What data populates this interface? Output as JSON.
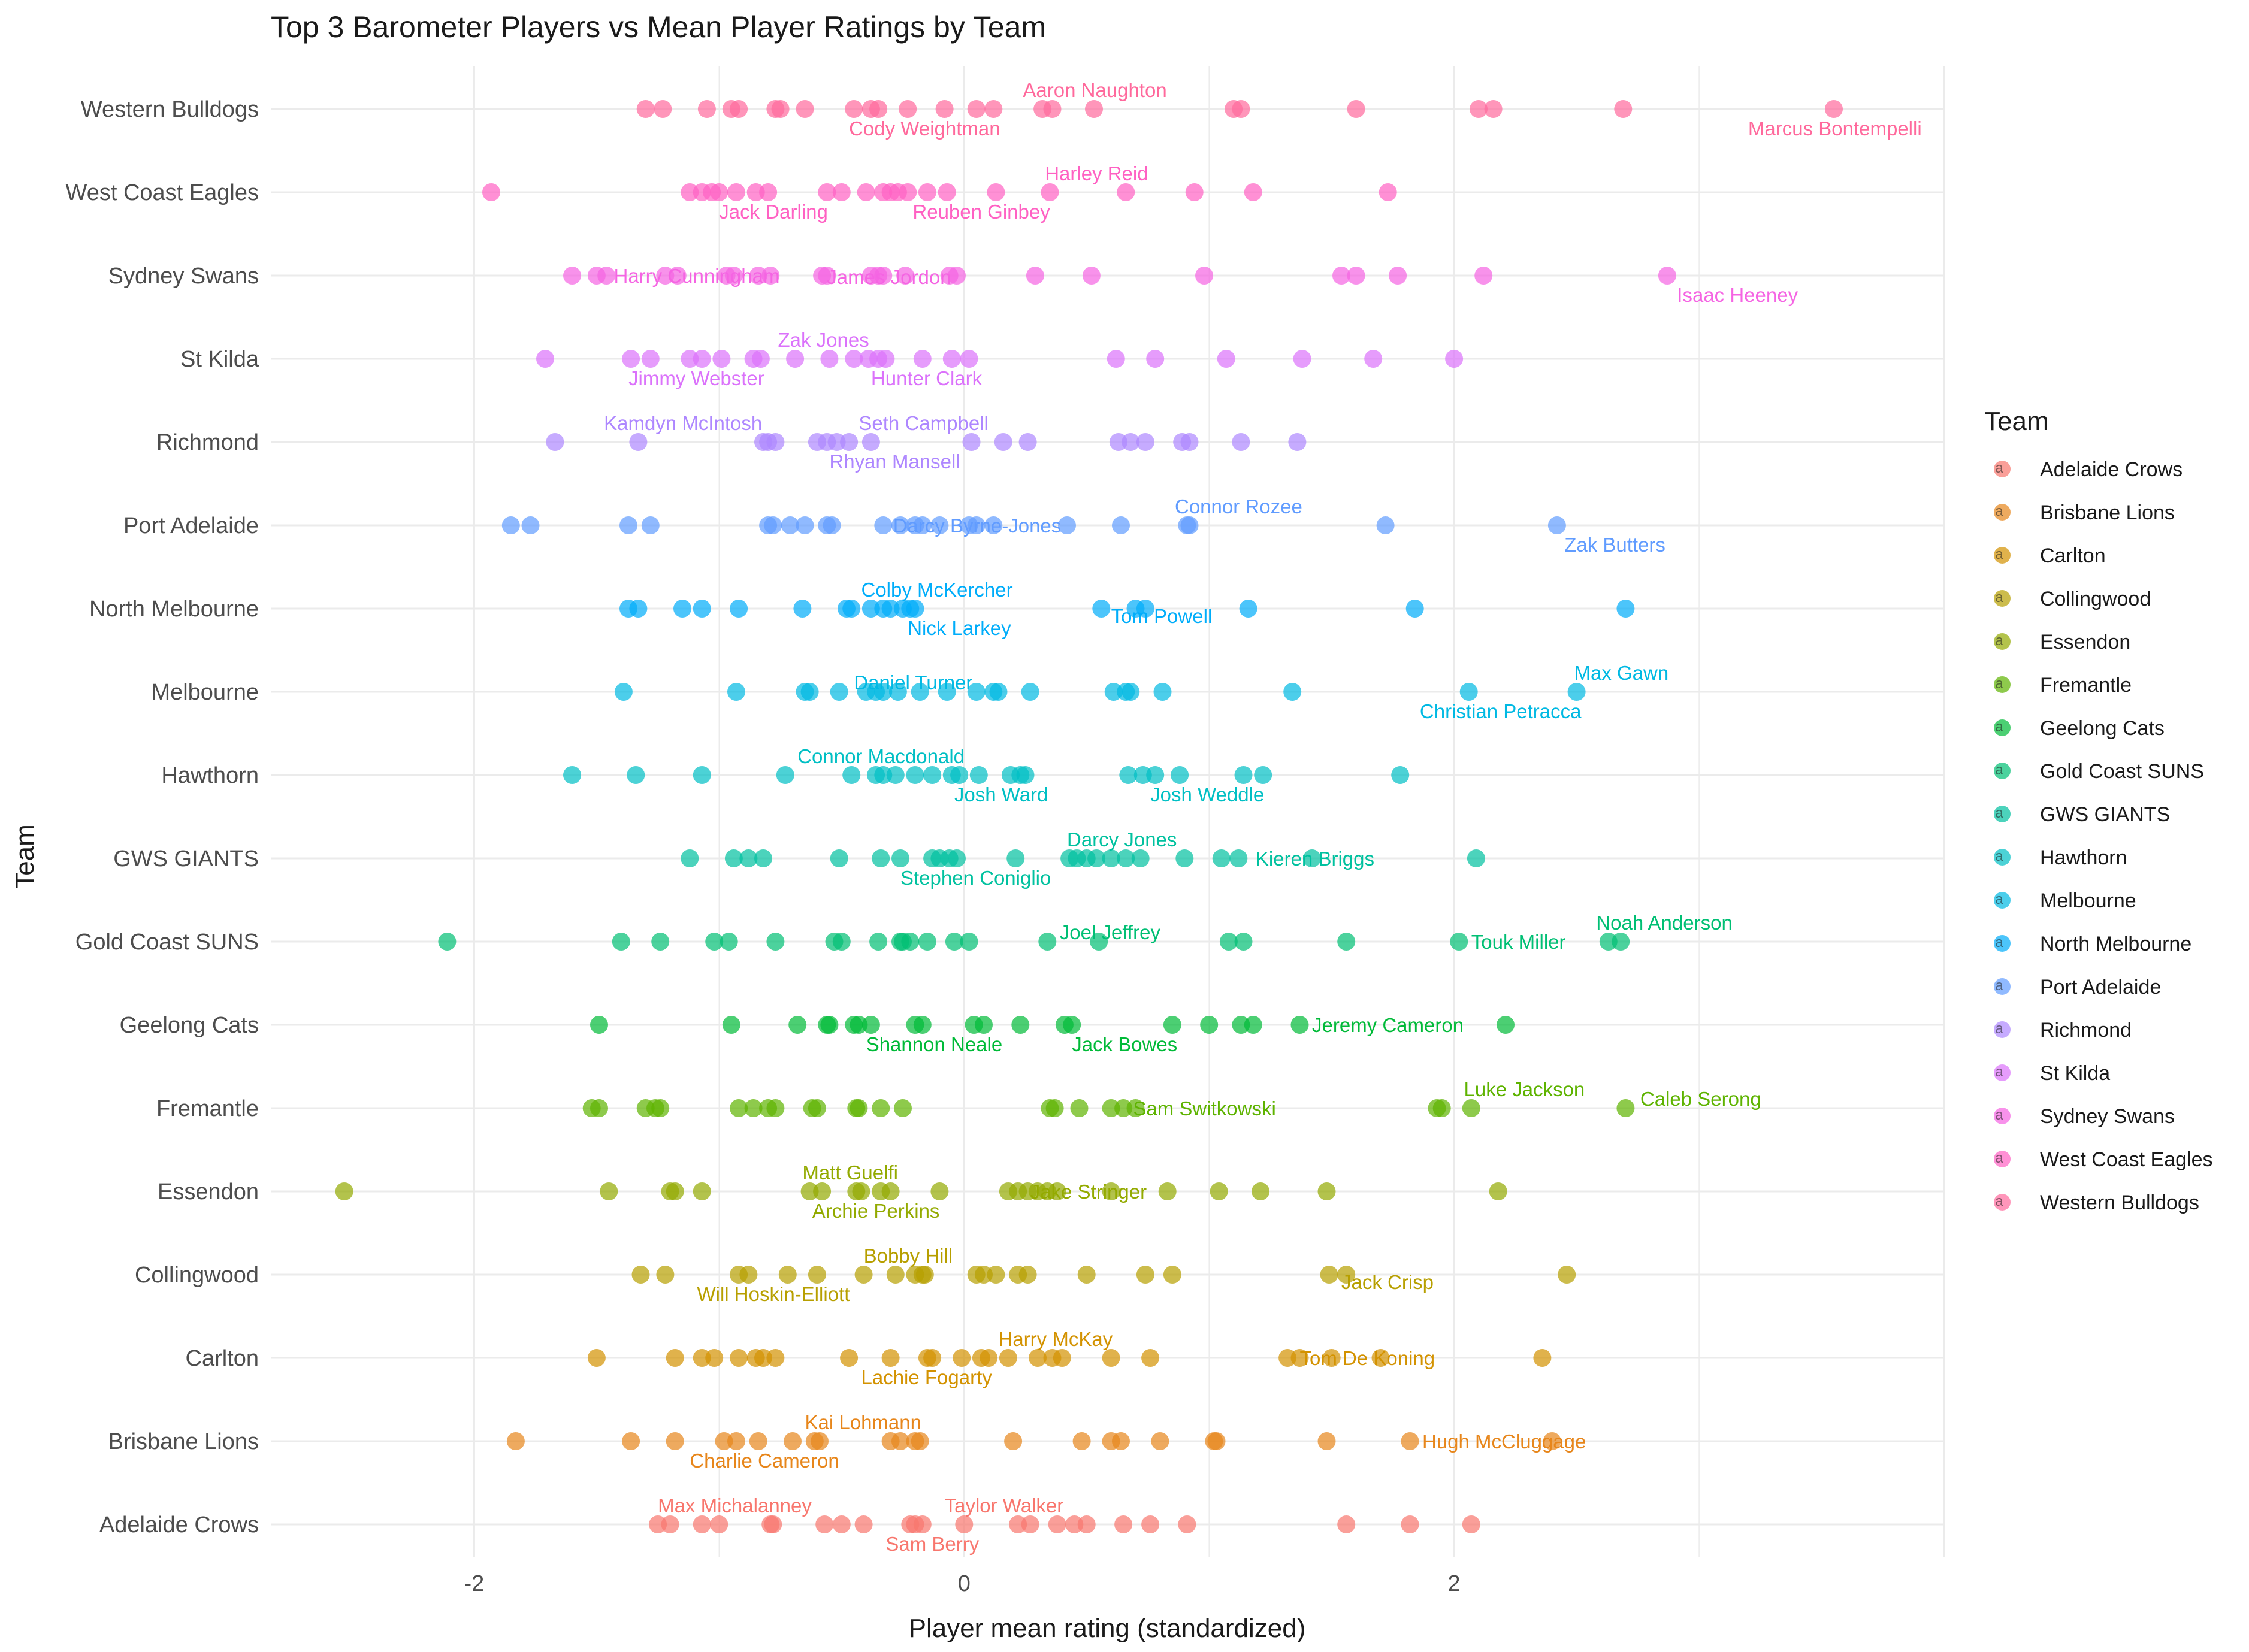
{
  "chart_data": {
    "type": "scatter",
    "title": "Top 3 Barometer Players vs Mean Player Ratings by Team",
    "xlabel": "Player mean rating (standardized)",
    "ylabel": "Team",
    "xlim": [
      -2.83,
      4.0
    ],
    "x_ticks": [
      -2,
      0,
      2
    ],
    "x_tick_labels": [
      "-2",
      "0",
      "2"
    ],
    "grid": true,
    "legend": {
      "title": "Team",
      "position": "right"
    },
    "teams": [
      "Adelaide Crows",
      "Brisbane Lions",
      "Carlton",
      "Collingwood",
      "Essendon",
      "Fremantle",
      "Geelong Cats",
      "Gold Coast SUNS",
      "GWS GIANTS",
      "Hawthorn",
      "Melbourne",
      "North Melbourne",
      "Port Adelaide",
      "Richmond",
      "St Kilda",
      "Sydney Swans",
      "West Coast Eagles",
      "Western Bulldogs"
    ],
    "colors": [
      "#F8766D",
      "#E7861B",
      "#D39200",
      "#B79F00",
      "#93AA00",
      "#5EB300",
      "#00BA38",
      "#00BF74",
      "#00C19F",
      "#00BFC4",
      "#00B9E3",
      "#00ADFA",
      "#619CFF",
      "#AE87FF",
      "#DB72FB",
      "#F564E3",
      "#FF61C3",
      "#FF699C"
    ],
    "series": [
      {
        "team": "Adelaide Crows",
        "values": [
          -1.25,
          -1.2,
          -1.07,
          -1.0,
          -0.79,
          -0.78,
          -0.57,
          -0.5,
          -0.41,
          -0.22,
          -0.2,
          -0.17,
          0.0,
          0.22,
          0.27,
          0.38,
          0.45,
          0.5,
          0.65,
          0.76,
          0.91,
          1.56,
          1.82,
          2.07
        ]
      },
      {
        "team": "Brisbane Lions",
        "values": [
          -1.83,
          -1.36,
          -1.18,
          -0.98,
          -0.93,
          -0.84,
          -0.7,
          -0.61,
          -0.59,
          -0.3,
          -0.26,
          -0.2,
          -0.18,
          0.2,
          0.48,
          0.6,
          0.64,
          0.8,
          1.02,
          1.03,
          1.48,
          1.82,
          2.4
        ]
      },
      {
        "team": "Carlton",
        "values": [
          -1.5,
          -1.18,
          -1.07,
          -1.02,
          -0.92,
          -0.85,
          -0.82,
          -0.77,
          -0.47,
          -0.3,
          -0.15,
          -0.13,
          -0.01,
          0.07,
          0.1,
          0.18,
          0.3,
          0.36,
          0.4,
          0.6,
          0.76,
          1.32,
          1.37,
          1.5,
          1.7,
          2.36
        ]
      },
      {
        "team": "Collingwood",
        "values": [
          -1.32,
          -1.22,
          -0.92,
          -0.88,
          -0.72,
          -0.6,
          -0.41,
          -0.28,
          -0.2,
          -0.17,
          -0.16,
          0.05,
          0.08,
          0.13,
          0.22,
          0.26,
          0.5,
          0.74,
          0.85,
          1.49,
          1.56,
          2.46
        ]
      },
      {
        "team": "Essendon",
        "values": [
          -2.53,
          -1.45,
          -1.2,
          -1.18,
          -1.07,
          -0.63,
          -0.58,
          -0.44,
          -0.42,
          -0.34,
          -0.3,
          -0.1,
          0.18,
          0.22,
          0.26,
          0.3,
          0.34,
          0.38,
          0.6,
          0.83,
          1.04,
          1.21,
          1.48,
          2.18
        ]
      },
      {
        "team": "Fremantle",
        "values": [
          -1.52,
          -1.49,
          -1.3,
          -1.26,
          -1.24,
          -0.92,
          -0.86,
          -0.8,
          -0.77,
          -0.62,
          -0.6,
          -0.44,
          -0.43,
          -0.34,
          -0.25,
          0.35,
          0.37,
          0.47,
          0.6,
          0.65,
          0.7,
          1.93,
          1.95,
          2.07,
          2.7
        ]
      },
      {
        "team": "Geelong Cats",
        "values": [
          -1.49,
          -0.95,
          -0.68,
          -0.56,
          -0.55,
          -0.45,
          -0.43,
          -0.38,
          -0.2,
          -0.17,
          0.04,
          0.08,
          0.23,
          0.41,
          0.44,
          0.85,
          1.0,
          1.13,
          1.18,
          1.37,
          2.21
        ]
      },
      {
        "team": "Gold Coast SUNS",
        "values": [
          -2.11,
          -1.4,
          -1.24,
          -1.02,
          -0.96,
          -0.77,
          -0.53,
          -0.5,
          -0.35,
          -0.26,
          -0.25,
          -0.22,
          -0.15,
          -0.04,
          0.02,
          0.34,
          0.55,
          1.08,
          1.14,
          1.56,
          2.02,
          2.63,
          2.68
        ]
      },
      {
        "team": "GWS GIANTS",
        "values": [
          -1.12,
          -0.94,
          -0.88,
          -0.82,
          -0.51,
          -0.34,
          -0.26,
          -0.13,
          -0.1,
          -0.06,
          -0.03,
          0.21,
          0.43,
          0.46,
          0.5,
          0.54,
          0.6,
          0.66,
          0.72,
          0.9,
          1.05,
          1.12,
          1.42,
          2.09
        ]
      },
      {
        "team": "Hawthorn",
        "values": [
          -1.6,
          -1.34,
          -1.07,
          -0.73,
          -0.46,
          -0.36,
          -0.33,
          -0.28,
          -0.2,
          -0.13,
          -0.05,
          -0.02,
          0.06,
          0.19,
          0.23,
          0.25,
          0.67,
          0.73,
          0.78,
          0.88,
          1.14,
          1.22,
          1.78
        ]
      },
      {
        "team": "Melbourne",
        "values": [
          -1.39,
          -0.93,
          -0.65,
          -0.63,
          -0.51,
          -0.4,
          -0.36,
          -0.33,
          -0.27,
          -0.18,
          -0.07,
          0.05,
          0.12,
          0.14,
          0.27,
          0.61,
          0.66,
          0.68,
          0.81,
          1.34,
          2.06,
          2.5
        ]
      },
      {
        "team": "North Melbourne",
        "values": [
          -1.37,
          -1.33,
          -1.15,
          -1.07,
          -0.92,
          -0.66,
          -0.48,
          -0.46,
          -0.38,
          -0.33,
          -0.3,
          -0.25,
          -0.22,
          -0.2,
          0.56,
          0.7,
          0.74,
          1.16,
          1.84,
          2.7
        ]
      },
      {
        "team": "Port Adelaide",
        "values": [
          -1.85,
          -1.77,
          -1.37,
          -1.28,
          -0.8,
          -0.78,
          -0.71,
          -0.65,
          -0.56,
          -0.54,
          -0.33,
          -0.26,
          -0.2,
          -0.17,
          -0.1,
          0.02,
          0.05,
          0.12,
          0.42,
          0.64,
          0.91,
          0.92,
          1.72,
          2.42
        ]
      },
      {
        "team": "Richmond",
        "values": [
          -1.67,
          -1.33,
          -0.82,
          -0.8,
          -0.77,
          -0.6,
          -0.56,
          -0.52,
          -0.47,
          -0.38,
          0.03,
          0.16,
          0.26,
          0.63,
          0.68,
          0.74,
          0.89,
          0.92,
          1.13,
          1.36
        ]
      },
      {
        "team": "St Kilda",
        "values": [
          -1.71,
          -1.36,
          -1.28,
          -1.12,
          -1.07,
          -0.99,
          -0.86,
          -0.83,
          -0.69,
          -0.55,
          -0.45,
          -0.39,
          -0.35,
          -0.32,
          -0.17,
          -0.05,
          0.02,
          0.62,
          0.78,
          1.07,
          1.38,
          1.67,
          2.0
        ]
      },
      {
        "team": "Sydney Swans",
        "values": [
          -1.6,
          -1.5,
          -1.46,
          -1.22,
          -1.17,
          -0.97,
          -0.94,
          -0.84,
          -0.79,
          -0.58,
          -0.56,
          -0.38,
          -0.35,
          -0.33,
          -0.24,
          -0.06,
          -0.03,
          0.29,
          0.52,
          0.98,
          1.54,
          1.6,
          1.77,
          2.12,
          2.87
        ]
      },
      {
        "team": "West Coast Eagles",
        "values": [
          -1.93,
          -1.12,
          -1.07,
          -1.03,
          -1.0,
          -0.93,
          -0.85,
          -0.8,
          -0.56,
          -0.5,
          -0.4,
          -0.33,
          -0.3,
          -0.27,
          -0.23,
          -0.15,
          -0.07,
          0.13,
          0.35,
          0.66,
          0.94,
          1.18,
          1.73
        ]
      },
      {
        "team": "Western Bulldogs",
        "values": [
          -1.3,
          -1.23,
          -1.05,
          -0.95,
          -0.92,
          -0.77,
          -0.75,
          -0.65,
          -0.45,
          -0.38,
          -0.35,
          -0.23,
          -0.08,
          0.05,
          0.12,
          0.32,
          0.36,
          0.53,
          1.1,
          1.13,
          1.6,
          2.1,
          2.16,
          2.69,
          3.55
        ]
      }
    ],
    "annotations": [
      {
        "team": "Adelaide Crows",
        "label": "Max Michalanney",
        "x": -1.25,
        "side": "above",
        "anchor": "start"
      },
      {
        "team": "Adelaide Crows",
        "label": "Taylor Walker",
        "x": -0.08,
        "side": "above",
        "anchor": "start"
      },
      {
        "team": "Adelaide Crows",
        "label": "Sam Berry",
        "x": -0.32,
        "side": "below",
        "anchor": "start"
      },
      {
        "team": "Brisbane Lions",
        "label": "Kai Lohmann",
        "x": -0.65,
        "side": "above",
        "anchor": "start"
      },
      {
        "team": "Brisbane Lions",
        "label": "Charlie Cameron",
        "x": -1.12,
        "side": "below",
        "anchor": "start"
      },
      {
        "team": "Brisbane Lions",
        "label": "Hugh McCluggage",
        "x": 1.87,
        "side": "level",
        "anchor": "start"
      },
      {
        "team": "Carlton",
        "label": "Harry McKay",
        "x": 0.14,
        "side": "above",
        "anchor": "start"
      },
      {
        "team": "Carlton",
        "label": "Lachie Fogarty",
        "x": -0.42,
        "side": "below",
        "anchor": "start"
      },
      {
        "team": "Carlton",
        "label": "Tom De Koning",
        "x": 1.37,
        "side": "level",
        "anchor": "start"
      },
      {
        "team": "Collingwood",
        "label": "Bobby Hill",
        "x": -0.41,
        "side": "above",
        "anchor": "start"
      },
      {
        "team": "Collingwood",
        "label": "Will Hoskin-Elliott",
        "x": -1.09,
        "side": "below",
        "anchor": "start"
      },
      {
        "team": "Collingwood",
        "label": "Jack Crisp",
        "x": 1.54,
        "side": "below-close",
        "anchor": "start"
      },
      {
        "team": "Essendon",
        "label": "Matt Guelfi",
        "x": -0.66,
        "side": "above",
        "anchor": "start"
      },
      {
        "team": "Essendon",
        "label": "Archie Perkins",
        "x": -0.62,
        "side": "below",
        "anchor": "start"
      },
      {
        "team": "Essendon",
        "label": "Jake Stringer",
        "x": 0.27,
        "side": "level",
        "anchor": "start"
      },
      {
        "team": "Fremantle",
        "label": "Luke Jackson",
        "x": 2.04,
        "side": "above",
        "anchor": "start"
      },
      {
        "team": "Fremantle",
        "label": "Caleb Serong",
        "x": 2.76,
        "side": "level-up",
        "anchor": "start"
      },
      {
        "team": "Fremantle",
        "label": "Sam Switkowski",
        "x": 0.69,
        "side": "level",
        "anchor": "start"
      },
      {
        "team": "Geelong Cats",
        "label": "Jeremy Cameron",
        "x": 1.42,
        "side": "level",
        "anchor": "start"
      },
      {
        "team": "Geelong Cats",
        "label": "Shannon Neale",
        "x": -0.4,
        "side": "below",
        "anchor": "start"
      },
      {
        "team": "Geelong Cats",
        "label": "Jack Bowes",
        "x": 0.44,
        "side": "below",
        "anchor": "start"
      },
      {
        "team": "Gold Coast SUNS",
        "label": "Noah Anderson",
        "x": 2.58,
        "side": "above",
        "anchor": "start"
      },
      {
        "team": "Gold Coast SUNS",
        "label": "Joel Jeffrey",
        "x": 0.39,
        "side": "level-up",
        "anchor": "start"
      },
      {
        "team": "Gold Coast SUNS",
        "label": "Touk Miller",
        "x": 2.07,
        "side": "level",
        "anchor": "start"
      },
      {
        "team": "GWS GIANTS",
        "label": "Darcy Jones",
        "x": 0.42,
        "side": "above",
        "anchor": "start"
      },
      {
        "team": "GWS GIANTS",
        "label": "Stephen Coniglio",
        "x": -0.26,
        "side": "below",
        "anchor": "start"
      },
      {
        "team": "GWS GIANTS",
        "label": "Kieren Briggs",
        "x": 1.19,
        "side": "level",
        "anchor": "start"
      },
      {
        "team": "Hawthorn",
        "label": "Connor Macdonald",
        "x": -0.68,
        "side": "above",
        "anchor": "start"
      },
      {
        "team": "Hawthorn",
        "label": "Josh Ward",
        "x": -0.04,
        "side": "below",
        "anchor": "start"
      },
      {
        "team": "Hawthorn",
        "label": "Josh Weddle",
        "x": 0.76,
        "side": "below",
        "anchor": "start"
      },
      {
        "team": "Melbourne",
        "label": "Max Gawn",
        "x": 2.49,
        "side": "above",
        "anchor": "start"
      },
      {
        "team": "Melbourne",
        "label": "Daniel Turner",
        "x": -0.45,
        "side": "level-up",
        "anchor": "start"
      },
      {
        "team": "Melbourne",
        "label": "Christian Petracca",
        "x": 1.86,
        "side": "below",
        "anchor": "start"
      },
      {
        "team": "North Melbourne",
        "label": "Colby McKercher",
        "x": -0.42,
        "side": "above",
        "anchor": "start"
      },
      {
        "team": "North Melbourne",
        "label": "Nick Larkey",
        "x": -0.23,
        "side": "below",
        "anchor": "start"
      },
      {
        "team": "North Melbourne",
        "label": "Tom Powell",
        "x": 0.6,
        "side": "below-close",
        "anchor": "start"
      },
      {
        "team": "Port Adelaide",
        "label": "Connor Rozee",
        "x": 0.86,
        "side": "above",
        "anchor": "start"
      },
      {
        "team": "Port Adelaide",
        "label": "Darcy Byrne-Jones",
        "x": -0.29,
        "side": "level",
        "anchor": "start"
      },
      {
        "team": "Port Adelaide",
        "label": "Zak Butters",
        "x": 2.45,
        "side": "below",
        "anchor": "start"
      },
      {
        "team": "Richmond",
        "label": "Kamdyn McIntosh",
        "x": -1.47,
        "side": "above",
        "anchor": "start"
      },
      {
        "team": "Richmond",
        "label": "Seth Campbell",
        "x": -0.43,
        "side": "above",
        "anchor": "start"
      },
      {
        "team": "Richmond",
        "label": "Rhyan Mansell",
        "x": -0.55,
        "side": "below",
        "anchor": "start"
      },
      {
        "team": "St Kilda",
        "label": "Zak Jones",
        "x": -0.76,
        "side": "above",
        "anchor": "start"
      },
      {
        "team": "St Kilda",
        "label": "Jimmy Webster",
        "x": -1.37,
        "side": "below",
        "anchor": "start"
      },
      {
        "team": "St Kilda",
        "label": "Hunter Clark",
        "x": -0.38,
        "side": "below",
        "anchor": "start"
      },
      {
        "team": "Sydney Swans",
        "label": "Harry Cunningham",
        "x": -1.43,
        "side": "level",
        "anchor": "start"
      },
      {
        "team": "Sydney Swans",
        "label": "James Jordon",
        "x": -0.56,
        "side": "level-down",
        "anchor": "start"
      },
      {
        "team": "Sydney Swans",
        "label": "Isaac Heeney",
        "x": 2.91,
        "side": "below",
        "anchor": "start"
      },
      {
        "team": "West Coast Eagles",
        "label": "Harley Reid",
        "x": 0.33,
        "side": "above",
        "anchor": "start"
      },
      {
        "team": "West Coast Eagles",
        "label": "Jack Darling",
        "x": -1.0,
        "side": "below",
        "anchor": "start"
      },
      {
        "team": "West Coast Eagles",
        "label": "Reuben Ginbey",
        "x": -0.21,
        "side": "below",
        "anchor": "start"
      },
      {
        "team": "Western Bulldogs",
        "label": "Aaron Naughton",
        "x": 0.24,
        "side": "above",
        "anchor": "start"
      },
      {
        "team": "Western Bulldogs",
        "label": "Cody Weightman",
        "x": -0.47,
        "side": "below",
        "anchor": "start"
      },
      {
        "team": "Western Bulldogs",
        "label": "Marcus Bontempelli",
        "x": 3.2,
        "side": "below",
        "anchor": "start"
      }
    ]
  }
}
